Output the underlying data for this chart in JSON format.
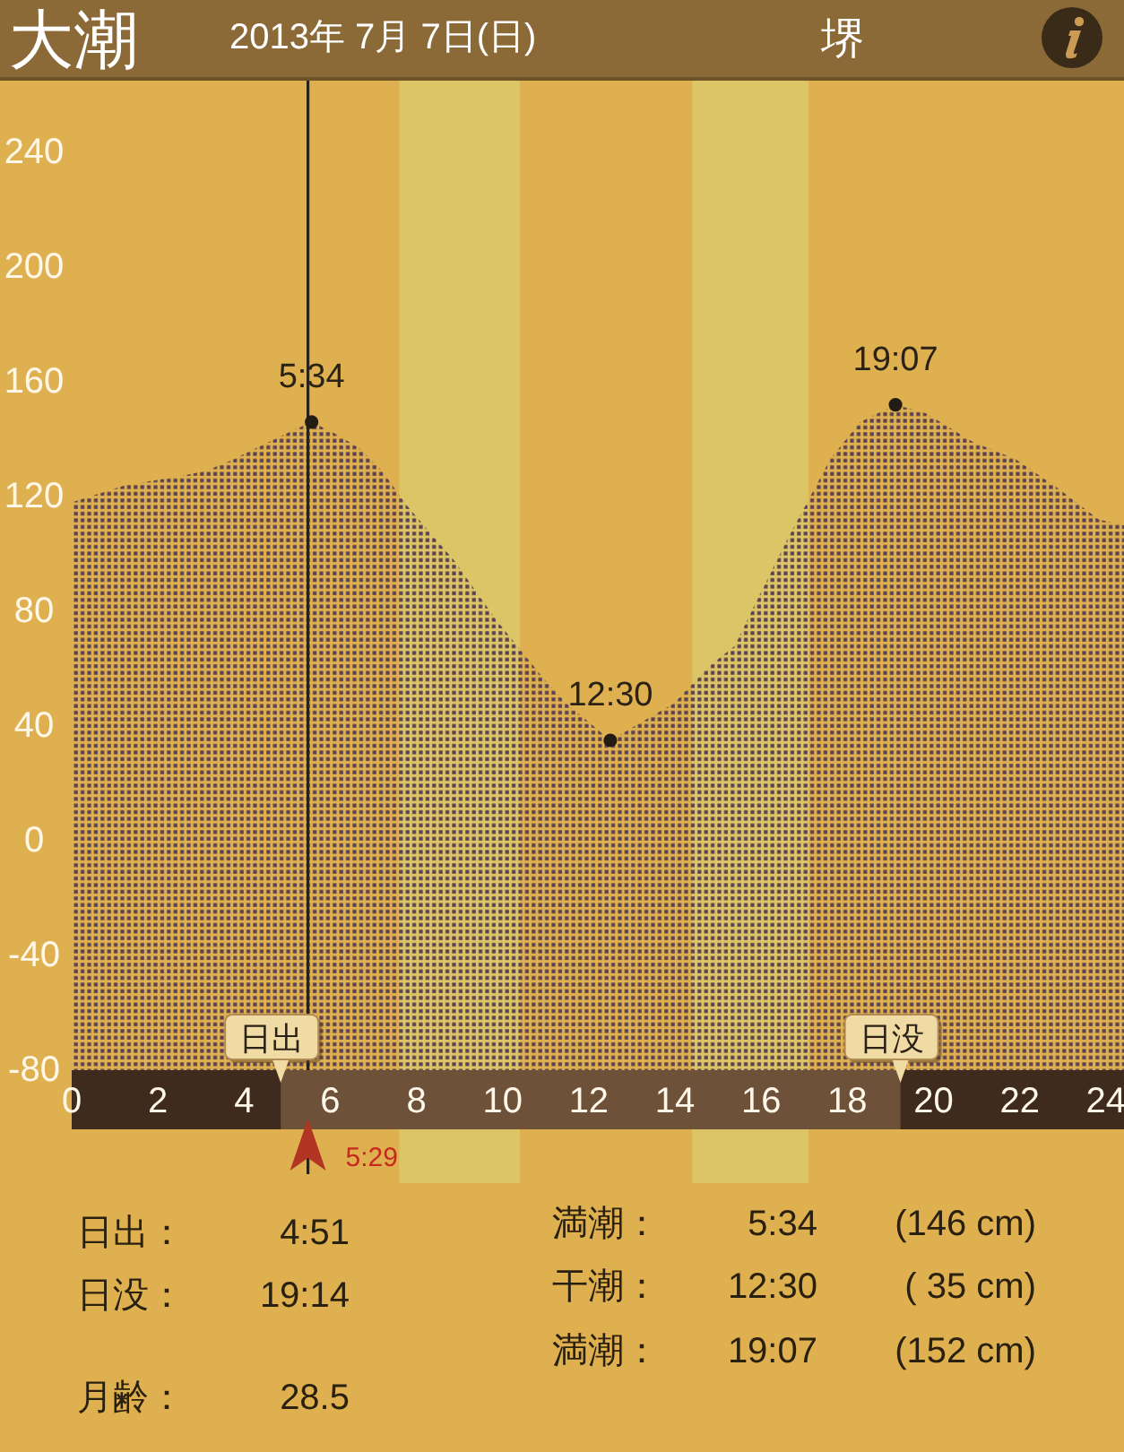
{
  "chart_data": {
    "type": "area",
    "title": "大潮",
    "subtitle": "2013年 7月 7日(日)",
    "x": [
      0,
      1.25,
      2.5,
      3.12,
      3.61,
      4.3,
      4.99,
      5.567,
      6.1,
      6.66,
      7.2,
      7.77,
      8.86,
      9.85,
      10.98,
      11.48,
      12.5,
      13.98,
      14.81,
      15.39,
      15.81,
      16.64,
      17.6,
      18.3,
      19.117,
      19.83,
      20.92,
      21.91,
      22.88,
      23.83,
      24.42
    ],
    "series": [
      {
        "color": "#5b4150",
        "values": [
          118,
          124,
          127,
          129,
          132,
          137,
          142,
          146,
          142,
          137,
          129,
          117,
          98,
          77,
          56,
          48,
          35,
          48,
          61,
          68,
          81,
          106,
          133,
          146,
          152,
          149,
          139,
          133,
          123,
          112,
          110
        ]
      }
    ],
    "xlim": [
      0,
      24.42
    ],
    "ylim": [
      -80,
      265
    ],
    "xticks": [
      0,
      2,
      4,
      6,
      8,
      10,
      12,
      14,
      16,
      18,
      20,
      22,
      24
    ],
    "yticks": [
      -80,
      -40,
      0,
      40,
      80,
      120,
      160,
      200,
      240
    ],
    "bands": [
      {
        "axis": "x",
        "from": 7.6,
        "to": 10.4,
        "color": "#dcc96b"
      },
      {
        "axis": "x",
        "from": 14.4,
        "to": 17.1,
        "color": "#dcc96b"
      }
    ],
    "ref_lines": [
      {
        "axis": "x",
        "value": 5.483,
        "label": "5:29",
        "color": "#2a2216"
      }
    ],
    "annotations": [
      {
        "text": "5:34",
        "x": 5.567,
        "y": 146
      },
      {
        "text": "12:30",
        "x": 12.5,
        "y": 35
      },
      {
        "text": "19:07",
        "x": 19.117,
        "y": 152
      },
      {
        "text": "日出",
        "x": 4.85,
        "y": -80
      },
      {
        "text": "日没",
        "x": 19.233,
        "y": -80
      },
      "堺",
      "日出：\t4:51",
      "日没：\t19:14",
      "月齢：\t28.5",
      "満潮：\t5:34\t(146 cm)",
      "干潮：\t12:30\t( 35 cm)",
      "満潮：\t19:07\t(152 cm)"
    ]
  }
}
